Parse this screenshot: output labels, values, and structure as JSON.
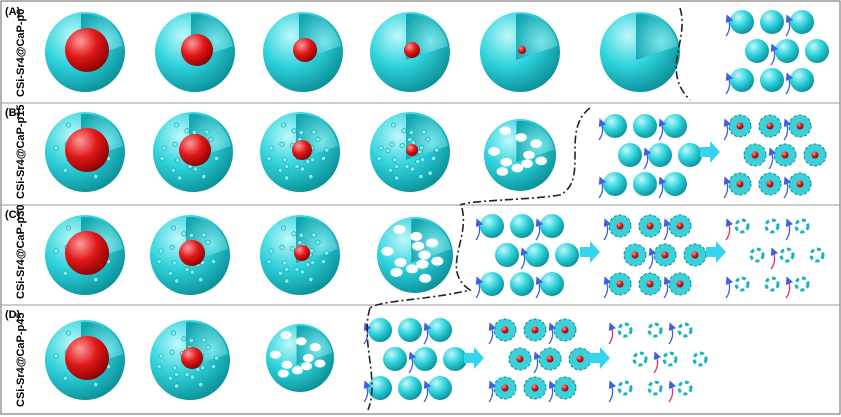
{
  "panels": [
    {
      "tag": "(A)",
      "label": "CSi-Sr4@CaP-p0"
    },
    {
      "tag": "(B)",
      "label": "CSi-Sr4@CaP-p15"
    },
    {
      "tag": "(C)",
      "label": "CSi-Sr4@CaP-p30"
    },
    {
      "tag": "(D)",
      "label": "CSi-Sr4@CaP-p45"
    }
  ]
}
